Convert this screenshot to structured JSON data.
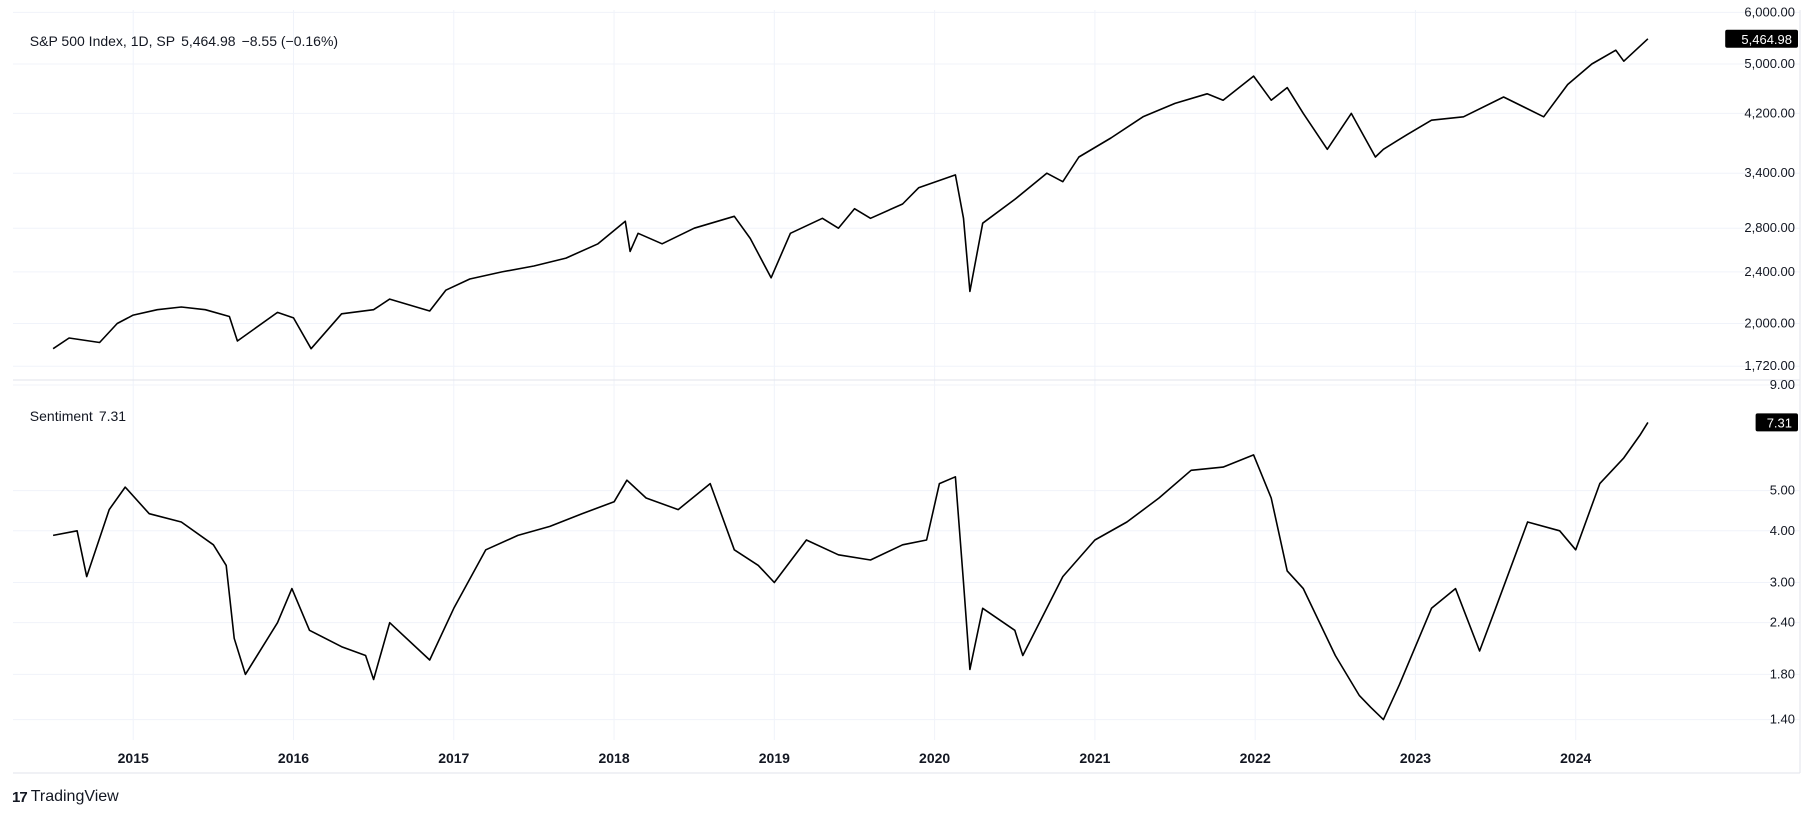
{
  "brand": {
    "logo": "17",
    "name": "TradingView"
  },
  "legend_top": {
    "symbol": "S&P 500 Index, 1D, SP",
    "last": "5,464.98",
    "change": "−8.55 (−0.16%)"
  },
  "legend_bottom": {
    "name": "Sentiment",
    "value": "7.31"
  },
  "colors": {
    "line": "#000000",
    "grid": "#f0f3fa",
    "border": "#e0e3eb",
    "badge": "#000000"
  },
  "chart_data": [
    {
      "type": "line",
      "title": "S&P 500 Index, 1D, SP",
      "scale": "log",
      "ylim": [
        1650,
        6050
      ],
      "xlim": [
        2014.25,
        2024.95
      ],
      "y_ticks": [
        "6,000.00",
        "5,000.00",
        "4,200.00",
        "3,400.00",
        "2,800.00",
        "2,400.00",
        "2,000.00",
        "1,720.00"
      ],
      "last_value_label": "5,464.98",
      "series": [
        {
          "x": [
            2014.5,
            2014.6,
            2014.79,
            2014.9,
            2015.0,
            2015.15,
            2015.3,
            2015.45,
            2015.6,
            2015.65,
            2015.9,
            2016.0,
            2016.11,
            2016.3,
            2016.5,
            2016.6,
            2016.85,
            2016.95,
            2017.1,
            2017.3,
            2017.5,
            2017.7,
            2017.9,
            2018.07,
            2018.1,
            2018.15,
            2018.3,
            2018.5,
            2018.75,
            2018.85,
            2018.98,
            2019.1,
            2019.3,
            2019.4,
            2019.5,
            2019.6,
            2019.8,
            2019.9,
            2020.13,
            2020.18,
            2020.22,
            2020.3,
            2020.5,
            2020.7,
            2020.8,
            2020.9,
            2021.1,
            2021.3,
            2021.5,
            2021.7,
            2021.8,
            2021.99,
            2022.1,
            2022.2,
            2022.3,
            2022.45,
            2022.6,
            2022.75,
            2022.8,
            2022.95,
            2023.1,
            2023.3,
            2023.55,
            2023.8,
            2023.95,
            2024.1,
            2024.25,
            2024.3,
            2024.45
          ],
          "y": [
            1830,
            1900,
            1870,
            2000,
            2060,
            2100,
            2120,
            2100,
            2050,
            1880,
            2080,
            2040,
            1830,
            2070,
            2100,
            2180,
            2090,
            2250,
            2340,
            2400,
            2450,
            2520,
            2650,
            2870,
            2580,
            2750,
            2650,
            2800,
            2920,
            2700,
            2350,
            2750,
            2900,
            2800,
            3000,
            2900,
            3050,
            3230,
            3380,
            2900,
            2240,
            2850,
            3100,
            3400,
            3300,
            3600,
            3850,
            4150,
            4350,
            4500,
            4400,
            4790,
            4400,
            4600,
            4200,
            3700,
            4200,
            3600,
            3700,
            3900,
            4100,
            4150,
            4450,
            4150,
            4650,
            5000,
            5250,
            5050,
            5464.98
          ]
        }
      ]
    },
    {
      "type": "line",
      "title": "Sentiment",
      "scale": "log",
      "ylim": [
        1.25,
        9.2
      ],
      "xlim": [
        2014.25,
        2024.95
      ],
      "y_ticks": [
        "9.00",
        "5.00",
        "4.00",
        "3.00",
        "2.40",
        "1.80",
        "1.40"
      ],
      "last_value_label": "7.31",
      "series": [
        {
          "x": [
            2014.5,
            2014.65,
            2014.71,
            2014.85,
            2014.95,
            2015.1,
            2015.3,
            2015.5,
            2015.58,
            2015.63,
            2015.7,
            2015.9,
            2015.99,
            2016.1,
            2016.3,
            2016.45,
            2016.5,
            2016.6,
            2016.85,
            2017.0,
            2017.2,
            2017.4,
            2017.6,
            2017.8,
            2018.0,
            2018.08,
            2018.2,
            2018.4,
            2018.6,
            2018.75,
            2018.9,
            2019.0,
            2019.2,
            2019.4,
            2019.6,
            2019.8,
            2019.95,
            2020.03,
            2020.13,
            2020.18,
            2020.22,
            2020.3,
            2020.5,
            2020.55,
            2020.8,
            2021.0,
            2021.2,
            2021.4,
            2021.6,
            2021.8,
            2021.99,
            2022.1,
            2022.2,
            2022.3,
            2022.5,
            2022.65,
            2022.72,
            2022.8,
            2022.9,
            2023.1,
            2023.25,
            2023.4,
            2023.5,
            2023.7,
            2023.9,
            2024.0,
            2024.15,
            2024.3,
            2024.4,
            2024.45
          ],
          "y": [
            3.9,
            4.0,
            3.1,
            4.5,
            5.1,
            4.4,
            4.2,
            3.7,
            3.3,
            2.2,
            1.8,
            2.4,
            2.9,
            2.3,
            2.1,
            2.0,
            1.75,
            2.4,
            1.95,
            2.6,
            3.6,
            3.9,
            4.1,
            4.4,
            4.7,
            5.3,
            4.8,
            4.5,
            5.2,
            3.6,
            3.3,
            3.0,
            3.8,
            3.5,
            3.4,
            3.7,
            3.8,
            5.2,
            5.4,
            3.0,
            1.85,
            2.6,
            2.3,
            2.0,
            3.1,
            3.8,
            4.2,
            4.8,
            5.6,
            5.7,
            6.1,
            4.8,
            3.2,
            2.9,
            2.0,
            1.6,
            1.5,
            1.4,
            1.7,
            2.6,
            2.9,
            2.05,
            2.6,
            4.2,
            4.0,
            3.6,
            5.2,
            6.0,
            6.8,
            7.31
          ]
        }
      ]
    }
  ],
  "x_axis": {
    "labels": [
      "2015",
      "2016",
      "2017",
      "2018",
      "2019",
      "2020",
      "2021",
      "2022",
      "2023",
      "2024"
    ]
  }
}
